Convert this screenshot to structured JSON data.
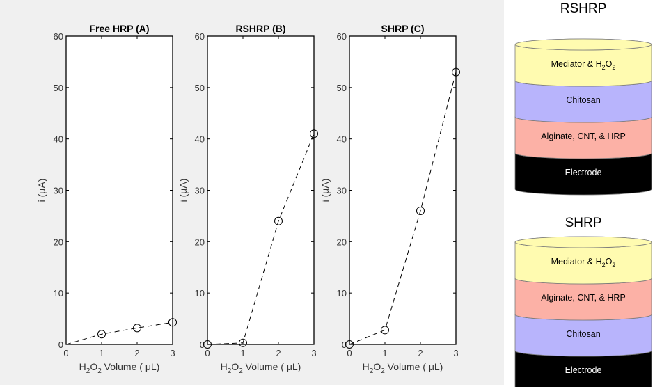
{
  "chart_data": [
    {
      "type": "line",
      "title": "Free HRP (A)",
      "xlabel": "H2O2 Volume ( μL)",
      "ylabel": "i (μA)",
      "xlim": [
        0,
        3
      ],
      "ylim": [
        0,
        60
      ],
      "xticks": [
        0,
        1,
        2,
        3
      ],
      "yticks": [
        0,
        10,
        20,
        30,
        40,
        50,
        60
      ],
      "series": [
        {
          "x": [
            0,
            1,
            2,
            3
          ],
          "y": [
            0,
            2.0,
            3.2,
            4.3
          ],
          "markers": [
            1,
            2,
            3
          ]
        }
      ]
    },
    {
      "type": "line",
      "title": "RSHRP (B)",
      "xlabel": "H2O2 Volume ( μL)",
      "ylabel": "i (μA)",
      "xlim": [
        0,
        3
      ],
      "ylim": [
        0,
        60
      ],
      "xticks": [
        0,
        1,
        2,
        3
      ],
      "yticks": [
        0,
        10,
        20,
        30,
        40,
        50,
        60
      ],
      "series": [
        {
          "x": [
            0,
            1,
            2,
            3
          ],
          "y": [
            0,
            0.3,
            24,
            41
          ],
          "markers": [
            0,
            1,
            2,
            3
          ]
        }
      ]
    },
    {
      "type": "line",
      "title": "SHRP (C)",
      "xlabel": "H2O2 Volume ( μL)",
      "ylabel": "i (μA)",
      "xlim": [
        0,
        3
      ],
      "ylim": [
        0,
        60
      ],
      "xticks": [
        0,
        1,
        2,
        3
      ],
      "yticks": [
        0,
        10,
        20,
        30,
        40,
        50,
        60
      ],
      "series": [
        {
          "x": [
            0,
            1,
            2,
            3
          ],
          "y": [
            0,
            2.8,
            26,
            53
          ],
          "markers": [
            0,
            1,
            2,
            3
          ]
        }
      ]
    }
  ],
  "stacks": [
    {
      "title": "RSHRP",
      "layers": [
        {
          "label": "Mediator & H2O2",
          "color": "#fffbb0"
        },
        {
          "label": "Chitosan",
          "color": "#b8b4fc"
        },
        {
          "label": "Alginate, CNT, & HRP",
          "color": "#fcb1a6"
        },
        {
          "label": "Electrode",
          "color": "#000000",
          "text_color": "#ffffff"
        }
      ]
    },
    {
      "title": "SHRP",
      "layers": [
        {
          "label": "Mediator & H2O2",
          "color": "#fffbb0"
        },
        {
          "label": "Alginate, CNT, & HRP",
          "color": "#fcb1a6"
        },
        {
          "label": "Chitosan",
          "color": "#b8b4fc"
        },
        {
          "label": "Electrode",
          "color": "#000000",
          "text_color": "#ffffff"
        }
      ]
    }
  ]
}
